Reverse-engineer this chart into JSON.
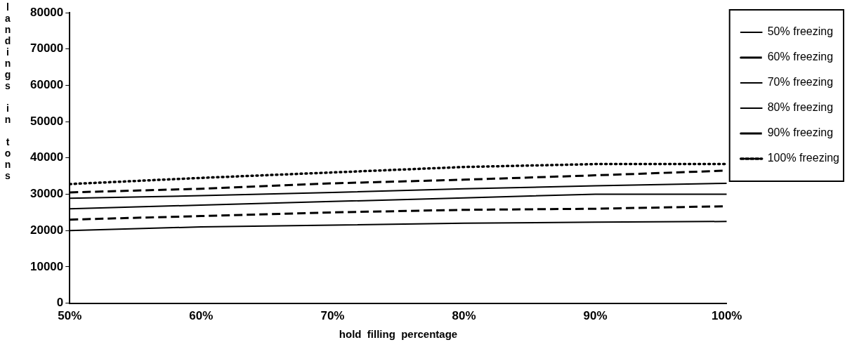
{
  "chart_data": {
    "type": "line",
    "xlabel": "hold  filling  percentage",
    "ylabel": "landings in tons",
    "x": [
      50,
      60,
      70,
      80,
      90,
      100
    ],
    "xlim": [
      50,
      100
    ],
    "xticks": [
      {
        "value": 50,
        "label": "50%"
      },
      {
        "value": 60,
        "label": "60%"
      },
      {
        "value": 70,
        "label": "70%"
      },
      {
        "value": 80,
        "label": "80%"
      },
      {
        "value": 90,
        "label": "90%"
      },
      {
        "value": 100,
        "label": "100%"
      }
    ],
    "ylim": [
      0,
      80000
    ],
    "yticks": [
      0,
      10000,
      20000,
      30000,
      40000,
      50000,
      60000,
      70000,
      80000
    ],
    "grid": false,
    "legend": "right",
    "marker": "none",
    "series": [
      {
        "name": "50% freezing",
        "color": "#000000",
        "line_style": "solid",
        "values": [
          20000,
          21000,
          21500,
          22000,
          22300,
          22500
        ]
      },
      {
        "name": "60% freezing",
        "color": "#000000",
        "line_style": "dashed",
        "values": [
          23000,
          24000,
          25000,
          25700,
          26000,
          26700
        ]
      },
      {
        "name": "70% freezing",
        "color": "#000000",
        "line_style": "solid",
        "values": [
          26000,
          27000,
          28000,
          29000,
          30000,
          30000
        ]
      },
      {
        "name": "80% freezing",
        "color": "#000000",
        "line_style": "solid",
        "values": [
          28900,
          29600,
          30500,
          31500,
          32300,
          33000
        ]
      },
      {
        "name": "90% freezing",
        "color": "#000000",
        "line_style": "dashed",
        "values": [
          30500,
          31500,
          33000,
          34000,
          35200,
          36500
        ]
      },
      {
        "name": "100% freezing",
        "color": "#000000",
        "line_style": "dotted",
        "values": [
          32800,
          34500,
          36000,
          37500,
          38300,
          38300
        ]
      }
    ]
  }
}
